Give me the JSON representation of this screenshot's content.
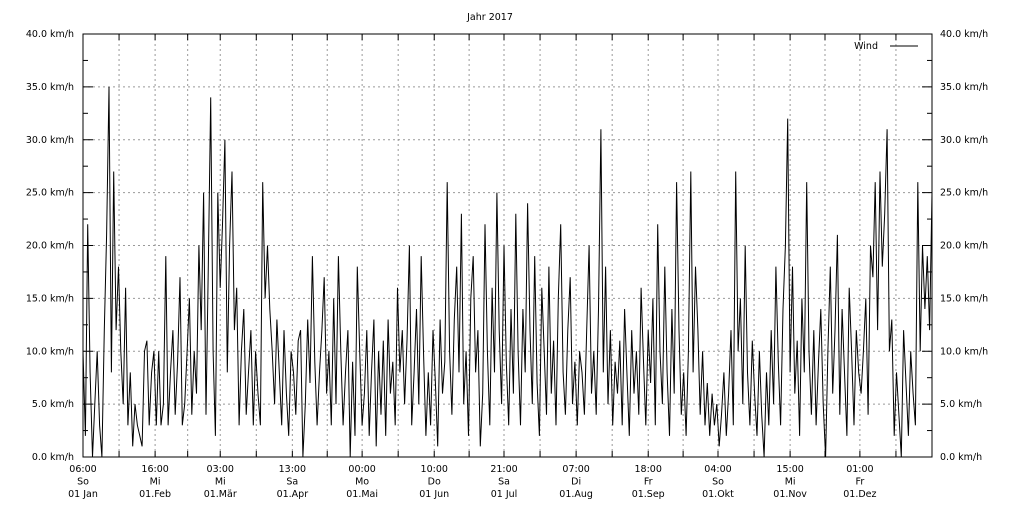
{
  "chart_data": {
    "type": "line",
    "title": "Jahr 2017",
    "xlim": [
      "2017-01-01",
      "2018-01-01"
    ],
    "ylim": [
      0,
      40
    ],
    "y_unit": "km/h",
    "y_ticks": [
      "0.0 km/h",
      "5.0 km/h",
      "10.0 km/h",
      "15.0 km/h",
      "20.0 km/h",
      "25.0 km/h",
      "30.0 km/h",
      "35.0 km/h",
      "40.0 km/h"
    ],
    "x_ticks": [
      {
        "time": "06:00",
        "day": "So",
        "date": "01 Jan",
        "doy": 0
      },
      {
        "time": "16:00",
        "day": "Mi",
        "date": "01.Feb",
        "doy": 31
      },
      {
        "time": "03:00",
        "day": "Mi",
        "date": "01.Mär",
        "doy": 59
      },
      {
        "time": "13:00",
        "day": "Sa",
        "date": "01.Apr",
        "doy": 90
      },
      {
        "time": "00:00",
        "day": "Mo",
        "date": "01.Mai",
        "doy": 120
      },
      {
        "time": "10:00",
        "day": "Do",
        "date": "01 Jun",
        "doy": 151
      },
      {
        "time": "21:00",
        "day": "Sa",
        "date": "01 Jul",
        "doy": 181
      },
      {
        "time": "07:00",
        "day": "Di",
        "date": "01.Aug",
        "doy": 212
      },
      {
        "time": "18:00",
        "day": "Fr",
        "date": "01.Sep",
        "doy": 243
      },
      {
        "time": "04:00",
        "day": "So",
        "date": "01.Okt",
        "doy": 273
      },
      {
        "time": "15:00",
        "day": "Mi",
        "date": "01.Nov",
        "doy": 304
      },
      {
        "time": "01:00",
        "day": "Fr",
        "date": "01.Dez",
        "doy": 334
      }
    ],
    "grid": true,
    "legend_position": "top-right",
    "series": [
      {
        "name": "Wind",
        "color": "#000000",
        "values": [
          10,
          2,
          22,
          8,
          0,
          5,
          10,
          3,
          0,
          12,
          21,
          35,
          8,
          27,
          12,
          18,
          10,
          5,
          16,
          3,
          8,
          1,
          5,
          3,
          2,
          1,
          10,
          11,
          3,
          8,
          10,
          3,
          10,
          3,
          5,
          19,
          3,
          8,
          12,
          4,
          9,
          17,
          3,
          5,
          10,
          15,
          4,
          10,
          6,
          20,
          12,
          25,
          4,
          18,
          34,
          10,
          2,
          25,
          16,
          22,
          30,
          8,
          20,
          27,
          12,
          16,
          3,
          10,
          14,
          4,
          8,
          12,
          3,
          10,
          6,
          3,
          26,
          15,
          20,
          14,
          10,
          5,
          13,
          8,
          3,
          12,
          6,
          2,
          10,
          8,
          4,
          11,
          12,
          0,
          5,
          13,
          7,
          19,
          9,
          3,
          8,
          12,
          17,
          6,
          10,
          3,
          15,
          5,
          19,
          10,
          3,
          8,
          12,
          0,
          9,
          2,
          18,
          10,
          3,
          6,
          12,
          2,
          8,
          13,
          1,
          10,
          4,
          11,
          2,
          13,
          6,
          9,
          3,
          16,
          8,
          12,
          5,
          11,
          20,
          3,
          8,
          14,
          5,
          19,
          10,
          2,
          8,
          3,
          12,
          7,
          1,
          13,
          6,
          9,
          26,
          10,
          4,
          13,
          18,
          8,
          23,
          5,
          10,
          2,
          15,
          19,
          8,
          12,
          1,
          6,
          22,
          10,
          3,
          16,
          8,
          25,
          12,
          5,
          20,
          9,
          3,
          14,
          6,
          23,
          10,
          3,
          14,
          8,
          24,
          12,
          5,
          19,
          7,
          2,
          16,
          10,
          4,
          18,
          6,
          11,
          3,
          15,
          22,
          8,
          4,
          12,
          17,
          5,
          9,
          3,
          10,
          8,
          4,
          12,
          20,
          6,
          10,
          4,
          14,
          31,
          8,
          18,
          5,
          12,
          3,
          9,
          6,
          11,
          3,
          14,
          8,
          2,
          12,
          6,
          10,
          4,
          16,
          9,
          3,
          12,
          7,
          15,
          3,
          22,
          10,
          5,
          18,
          8,
          2,
          14,
          6,
          26,
          12,
          4,
          8,
          2,
          10,
          27,
          8,
          18,
          12,
          4,
          10,
          3,
          7,
          2,
          6,
          3,
          5,
          1,
          4,
          8,
          2,
          6,
          12,
          3,
          27,
          10,
          15,
          5,
          20,
          8,
          3,
          11,
          6,
          2,
          10,
          4,
          0,
          8,
          3,
          12,
          5,
          18,
          9,
          3,
          14,
          20,
          32,
          8,
          18,
          6,
          11,
          2,
          15,
          8,
          26,
          10,
          4,
          12,
          3,
          9,
          14,
          5,
          0,
          10,
          18,
          6,
          12,
          21,
          4,
          14,
          8,
          2,
          16,
          10,
          3,
          12,
          8,
          6,
          10,
          15,
          4,
          20,
          17,
          26,
          12,
          27,
          18,
          23,
          31,
          10,
          13,
          2,
          8,
          4,
          0,
          12,
          7,
          2,
          10,
          6,
          3,
          26,
          10,
          20,
          14,
          19,
          12,
          25
        ]
      }
    ]
  }
}
